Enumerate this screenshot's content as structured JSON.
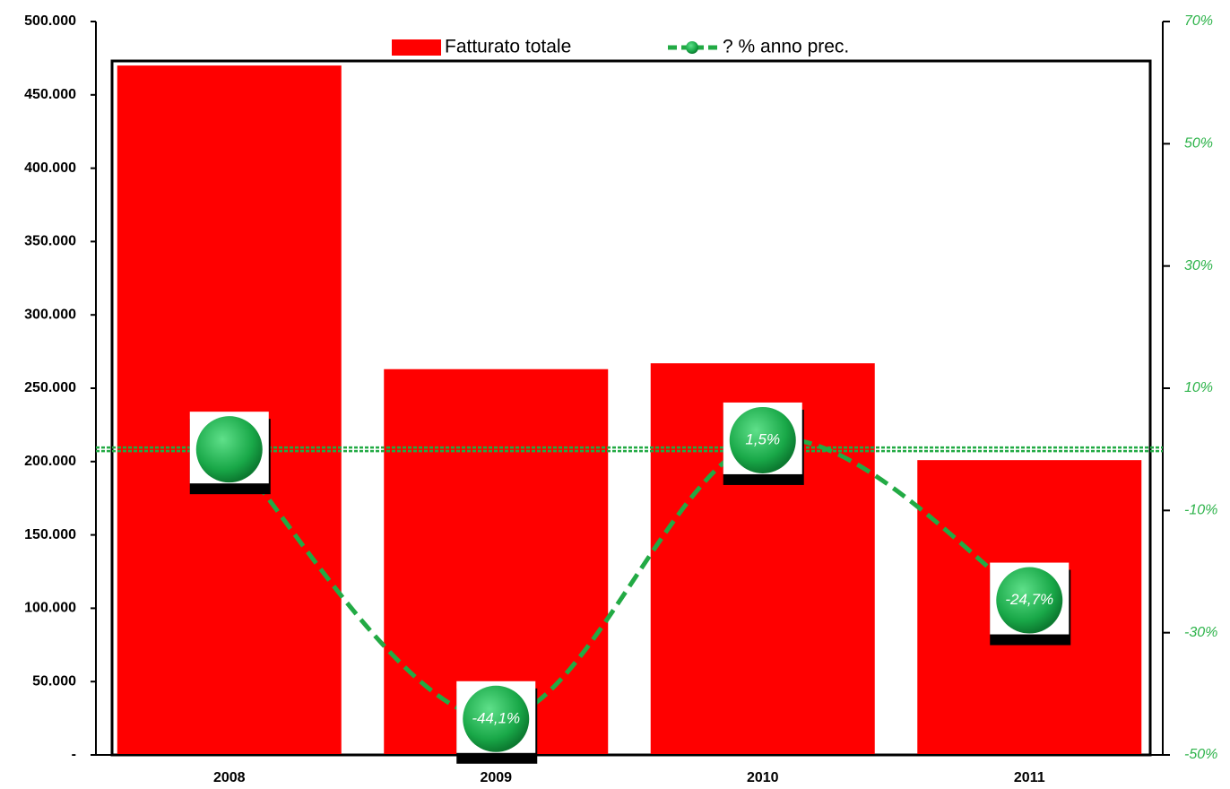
{
  "chart_data": {
    "type": "bar",
    "categories": [
      "2008",
      "2009",
      "2010",
      "2011"
    ],
    "series": [
      {
        "name": "Fatturato totale",
        "color": "#ff0000",
        "values": [
          470000,
          263000,
          267000,
          201000
        ]
      },
      {
        "name": "? % anno prec.",
        "color": "#22aa44",
        "axis": "y2",
        "type": "line",
        "values": [
          0,
          -44.1,
          1.5,
          -24.7
        ],
        "value_labels": [
          null,
          "-44,1%",
          "1,5%",
          "-24,7%"
        ]
      }
    ],
    "ylim": [
      0,
      500000
    ],
    "yticks": [
      {
        "value": 0,
        "label": "-"
      },
      {
        "value": 50000,
        "label": "50.000"
      },
      {
        "value": 100000,
        "label": "100.000"
      },
      {
        "value": 150000,
        "label": "150.000"
      },
      {
        "value": 200000,
        "label": "200.000"
      },
      {
        "value": 250000,
        "label": "250.000"
      },
      {
        "value": 300000,
        "label": "300.000"
      },
      {
        "value": 350000,
        "label": "350.000"
      },
      {
        "value": 400000,
        "label": "400.000"
      },
      {
        "value": 450000,
        "label": "450.000"
      },
      {
        "value": 500000,
        "label": "500.000"
      }
    ],
    "y2lim": [
      -50,
      70
    ],
    "y2ticks": [
      {
        "value": -50,
        "label": "-50%"
      },
      {
        "value": -30,
        "label": "-30%"
      },
      {
        "value": -10,
        "label": "-10%"
      },
      {
        "value": 10,
        "label": "10%"
      },
      {
        "value": 30,
        "label": "30%"
      },
      {
        "value": 50,
        "label": "50%"
      },
      {
        "value": 70,
        "label": "70%"
      }
    ],
    "legend": "top"
  }
}
